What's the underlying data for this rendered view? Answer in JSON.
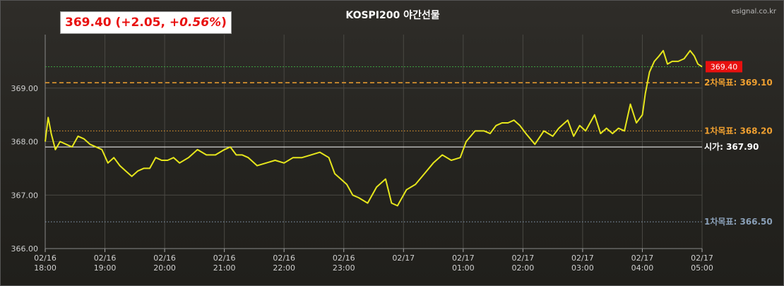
{
  "header": {
    "price": "369.40",
    "change_open": "(+2.05,",
    "change_pct": "+0.56%",
    "change_close": ")",
    "title": "KOSPI200 야간선물",
    "brand": "esignal.co.kr"
  },
  "colors": {
    "price_line": "#e6e61c",
    "up_text": "#e8100f",
    "target_upper": "#f0a030",
    "open_line": "#ffffff",
    "target_lower": "#8aa0b8",
    "current_badge": "#e8100f"
  },
  "chart_data": {
    "type": "line",
    "title": "KOSPI200 야간선물",
    "x_tick_labels": [
      [
        "02/16",
        "18:00"
      ],
      [
        "02/16",
        "19:00"
      ],
      [
        "02/16",
        "20:00"
      ],
      [
        "02/16",
        "21:00"
      ],
      [
        "02/16",
        "22:00"
      ],
      [
        "02/16",
        "23:00"
      ],
      [
        "02/17",
        ""
      ],
      [
        "02/17",
        "01:00"
      ],
      [
        "02/17",
        "02:00"
      ],
      [
        "02/17",
        "03:00"
      ],
      [
        "02/17",
        "04:00"
      ],
      [
        "02/17",
        "05:00"
      ]
    ],
    "x_hours": [
      18,
      19,
      20,
      21,
      22,
      23,
      24,
      25,
      26,
      27,
      28,
      29
    ],
    "xlim": [
      18,
      29
    ],
    "ylim": [
      366.0,
      370.0
    ],
    "y_ticks": [
      "366.00",
      "367.00",
      "368.00",
      "369.00"
    ],
    "y_tick_values": [
      366.0,
      367.0,
      368.0,
      369.0
    ],
    "grid": true,
    "series": [
      {
        "x": [
          18.0,
          18.05,
          18.1,
          18.17,
          18.25,
          18.35,
          18.45,
          18.55,
          18.65,
          18.75,
          18.85,
          18.95,
          19.05,
          19.15,
          19.25,
          19.35,
          19.45,
          19.55,
          19.65,
          19.75,
          19.85,
          19.95,
          20.05,
          20.15,
          20.25,
          20.4,
          20.55,
          20.7,
          20.85,
          21.0,
          21.1,
          21.2,
          21.3,
          21.4,
          21.55,
          21.7,
          21.85,
          22.0,
          22.15,
          22.3,
          22.45,
          22.6,
          22.75,
          22.85,
          22.95,
          23.05,
          23.15,
          23.25,
          23.4,
          23.55,
          23.7,
          23.8,
          23.9,
          23.95,
          24.05,
          24.2,
          24.35,
          24.5,
          24.65,
          24.8,
          24.95,
          25.05,
          25.2,
          25.35,
          25.45,
          25.55,
          25.65,
          25.75,
          25.85,
          25.95,
          26.05,
          26.2,
          26.35,
          26.5,
          26.6,
          26.7,
          26.75,
          26.85,
          26.95,
          27.05,
          27.2,
          27.3,
          27.4,
          27.5,
          27.6,
          27.7,
          27.8,
          27.9,
          28.0,
          28.05,
          28.12,
          28.2,
          28.28,
          28.35,
          28.42,
          28.5,
          28.6,
          28.7,
          28.8,
          28.87,
          28.93,
          29.0
        ],
        "y": [
          368.0,
          368.45,
          368.15,
          367.85,
          368.0,
          367.95,
          367.9,
          368.1,
          368.05,
          367.95,
          367.9,
          367.85,
          367.6,
          367.7,
          367.55,
          367.45,
          367.35,
          367.45,
          367.5,
          367.5,
          367.7,
          367.65,
          367.65,
          367.7,
          367.6,
          367.7,
          367.85,
          367.75,
          367.75,
          367.85,
          367.9,
          367.75,
          367.75,
          367.7,
          367.55,
          367.6,
          367.65,
          367.6,
          367.7,
          367.7,
          367.75,
          367.8,
          367.7,
          367.4,
          367.3,
          367.2,
          367.0,
          366.95,
          366.85,
          367.15,
          367.3,
          366.85,
          366.8,
          366.9,
          367.1,
          367.2,
          367.4,
          367.6,
          367.75,
          367.65,
          367.7,
          368.0,
          368.2,
          368.2,
          368.15,
          368.3,
          368.35,
          368.35,
          368.4,
          368.3,
          368.15,
          367.95,
          368.2,
          368.1,
          368.25,
          368.35,
          368.4,
          368.1,
          368.3,
          368.2,
          368.5,
          368.15,
          368.25,
          368.15,
          368.25,
          368.2,
          368.7,
          368.35,
          368.5,
          368.9,
          369.3,
          369.5,
          369.6,
          369.7,
          369.45,
          369.5,
          369.5,
          369.55,
          369.7,
          369.6,
          369.45,
          369.4
        ]
      }
    ],
    "reference_lines": [
      {
        "label": "2차목표:",
        "value_label": "369.10",
        "value": 369.1,
        "style": "dashed",
        "color": "#f0a030"
      },
      {
        "label": "1차목표:",
        "value_label": "368.20",
        "value": 368.2,
        "style": "dotted",
        "color": "#f0a030"
      },
      {
        "label": "시가:",
        "value_label": "367.90",
        "value": 367.9,
        "style": "solid",
        "color": "#ffffff"
      },
      {
        "label": "1차목표:",
        "value_label": "366.50",
        "value": 366.5,
        "style": "dotted",
        "color": "#8aa0b8"
      }
    ],
    "current": {
      "label": "369.40",
      "value": 369.4
    }
  }
}
